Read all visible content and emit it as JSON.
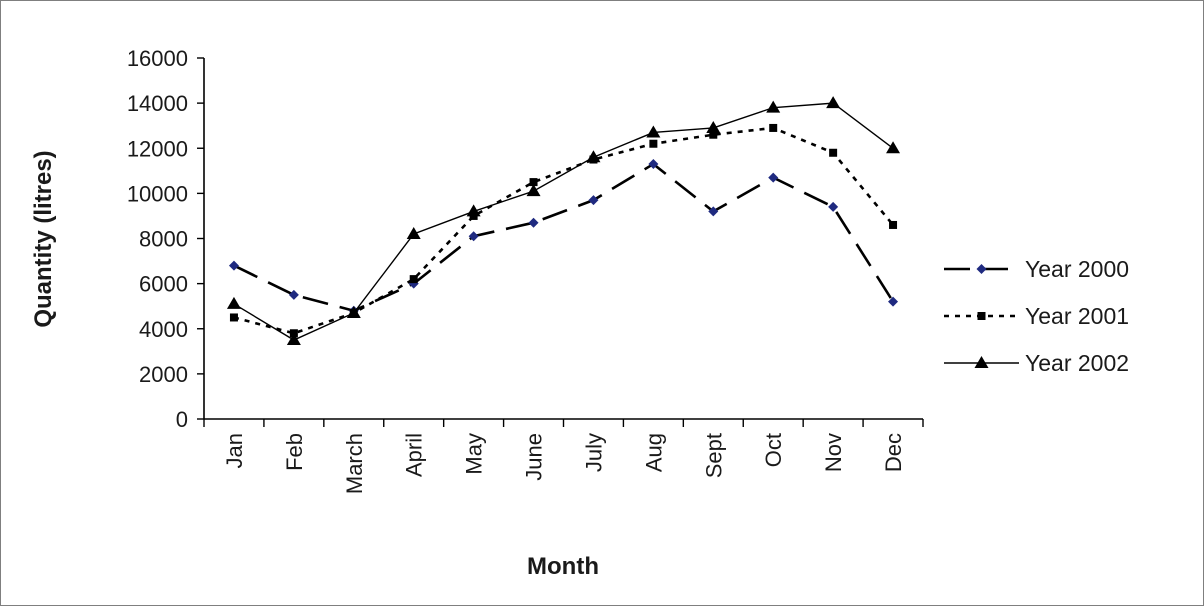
{
  "chart_data": {
    "type": "line",
    "title": "",
    "xlabel": "Month",
    "ylabel": "Quantity (litres)",
    "ylim": [
      0,
      16000
    ],
    "yticks": [
      "0",
      "2000",
      "4000",
      "6000",
      "8000",
      "10000",
      "12000",
      "14000",
      "16000"
    ],
    "categories": [
      "Jan",
      "Feb",
      "March",
      "April",
      "May",
      "June",
      "July",
      "Aug",
      "Sept",
      "Oct",
      "Nov",
      "Dec"
    ],
    "grid": false,
    "legend_position": "right",
    "series": [
      {
        "name": "Year 2000",
        "style": "long-dash",
        "marker": "diamond",
        "color": "#000000",
        "marker_color": "#1f2a80",
        "values": [
          6800,
          5500,
          4800,
          6000,
          8100,
          8700,
          9700,
          11300,
          9200,
          10700,
          9400,
          5200
        ]
      },
      {
        "name": "Year 2001",
        "style": "dotted",
        "marker": "square",
        "color": "#000000",
        "marker_color": "#000000",
        "values": [
          4500,
          3800,
          4700,
          6200,
          9000,
          10500,
          11500,
          12200,
          12600,
          12900,
          11800,
          8600
        ]
      },
      {
        "name": "Year 2002",
        "style": "solid",
        "marker": "triangle",
        "color": "#000000",
        "marker_color": "#000000",
        "values": [
          5100,
          3500,
          4700,
          8200,
          9200,
          10100,
          11600,
          12700,
          12900,
          13800,
          14000,
          12000
        ]
      }
    ]
  }
}
